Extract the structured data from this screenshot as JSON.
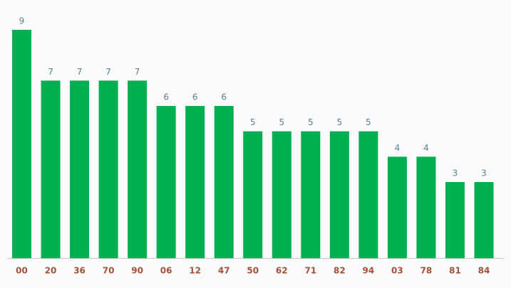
{
  "chart_data": {
    "type": "bar",
    "categories": [
      "00",
      "20",
      "36",
      "70",
      "90",
      "06",
      "12",
      "47",
      "50",
      "62",
      "71",
      "82",
      "94",
      "03",
      "78",
      "81",
      "84"
    ],
    "values": [
      9,
      7,
      7,
      7,
      7,
      6,
      6,
      6,
      5,
      5,
      5,
      5,
      5,
      4,
      4,
      3,
      3
    ],
    "color": "#00b050"
  }
}
